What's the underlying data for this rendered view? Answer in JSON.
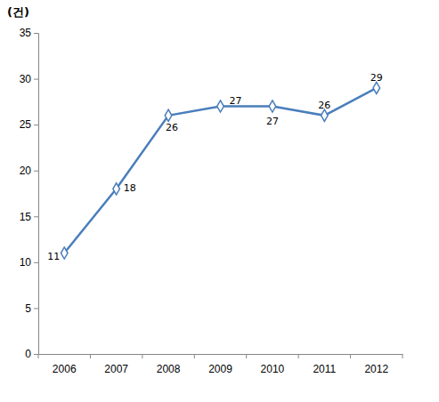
{
  "chart_data": {
    "type": "line",
    "y_label": "(건)",
    "categories": [
      "2006",
      "2007",
      "2008",
      "2009",
      "2010",
      "2011",
      "2012"
    ],
    "values": [
      11,
      18,
      26,
      27,
      27,
      26,
      29
    ],
    "color": "#4a7ebb",
    "marker": "diamond",
    "line_style": "solid",
    "ylim": [
      0,
      35
    ],
    "yticks": [
      0,
      5,
      10,
      15,
      20,
      25,
      30,
      35
    ],
    "grid": false,
    "data_labels": true
  }
}
